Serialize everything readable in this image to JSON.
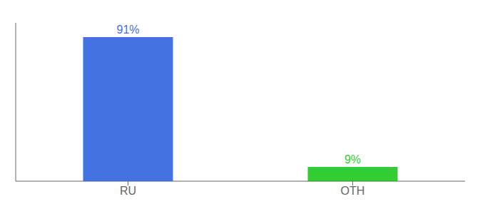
{
  "chart_data": {
    "type": "bar",
    "categories": [
      "RU",
      "OTH"
    ],
    "values": [
      91,
      9
    ],
    "colors": [
      "#4472e0",
      "#33cc33"
    ],
    "ylim": [
      0,
      100
    ],
    "data_labels": true,
    "value_labels": [
      "91%",
      "9%"
    ],
    "tick_labels": "x"
  }
}
